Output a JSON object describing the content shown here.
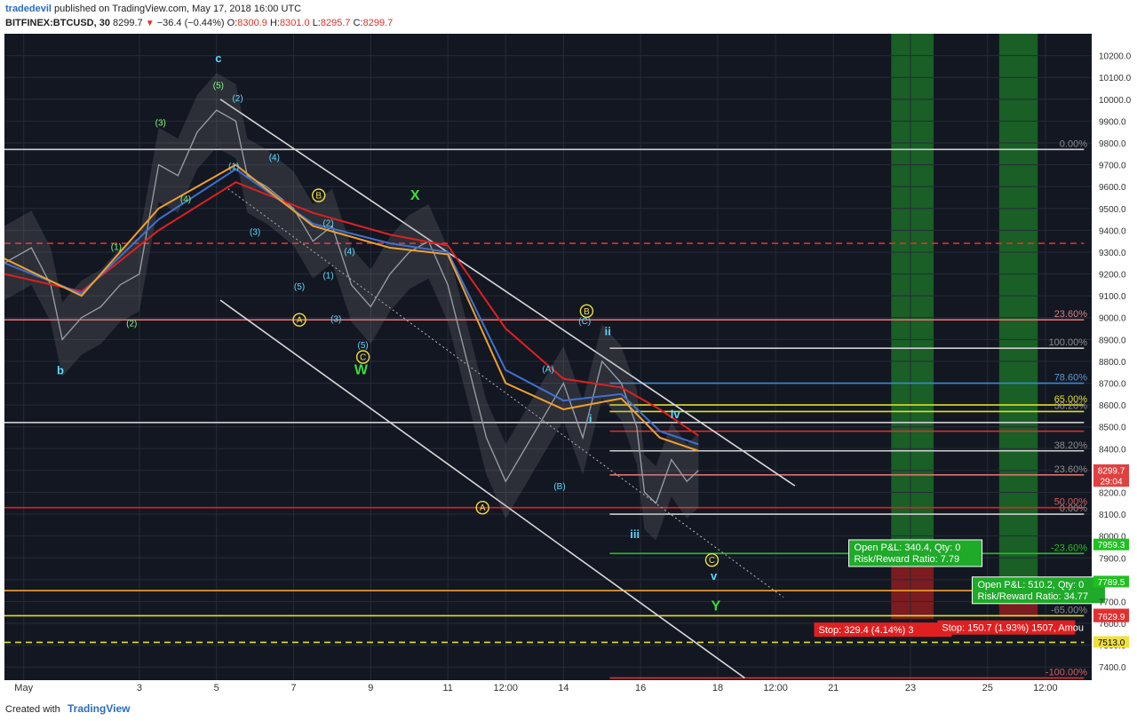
{
  "header": {
    "author": "tradedevil",
    "published": "published on TradingView.com, May 17, 2018 16:00 UTC",
    "symbol": "BITFINEX:BTCUSD, 30",
    "last": "8299.7",
    "arrow": "▼",
    "change": "−36.4 (−0.44%)",
    "open_label": "O:",
    "open": "8300.9",
    "high_label": "H:",
    "high": "8301.0",
    "low_label": "L:",
    "low": "8295.7",
    "close_label": "C:",
    "close": "8299.7"
  },
  "footer": {
    "created_with": "Created with",
    "brand": "TradingView"
  },
  "chart_data": {
    "type": "line",
    "ylim": [
      7340,
      10300
    ],
    "y_ticks": [
      7400,
      7500,
      7600,
      7700,
      7800,
      7900,
      8000,
      8100,
      8200,
      8300,
      8400,
      8500,
      8600,
      8700,
      8800,
      8900,
      9000,
      9100,
      9200,
      9300,
      9400,
      9500,
      9600,
      9700,
      9800,
      9900,
      10000,
      10100,
      10200
    ],
    "x_ticks": [
      {
        "label": "May",
        "t": 0.5
      },
      {
        "label": "3",
        "t": 3.5
      },
      {
        "label": "5",
        "t": 5.5
      },
      {
        "label": "7",
        "t": 7.5
      },
      {
        "label": "9",
        "t": 9.5
      },
      {
        "label": "11",
        "t": 11.5
      },
      {
        "label": "12:00",
        "t": 13
      },
      {
        "label": "14",
        "t": 14.5
      },
      {
        "label": "16",
        "t": 16.5
      },
      {
        "label": "18",
        "t": 18.5
      },
      {
        "label": "12:00",
        "t": 20
      },
      {
        "label": "21",
        "t": 21.5
      },
      {
        "label": "23",
        "t": 23.5
      },
      {
        "label": "25",
        "t": 25.5
      },
      {
        "label": "12:00",
        "t": 27
      }
    ],
    "price_path": [
      {
        "t": 0,
        "p": 9250
      },
      {
        "t": 0.7,
        "p": 9320
      },
      {
        "t": 1.2,
        "p": 9150
      },
      {
        "t": 1.5,
        "p": 8900
      },
      {
        "t": 2,
        "p": 9000
      },
      {
        "t": 2.5,
        "p": 9050
      },
      {
        "t": 3,
        "p": 9150
      },
      {
        "t": 3.5,
        "p": 9200
      },
      {
        "t": 4,
        "p": 9700
      },
      {
        "t": 4.5,
        "p": 9650
      },
      {
        "t": 5,
        "p": 9850
      },
      {
        "t": 5.5,
        "p": 9950
      },
      {
        "t": 6,
        "p": 9900
      },
      {
        "t": 6.3,
        "p": 9650
      },
      {
        "t": 6.8,
        "p": 9600
      },
      {
        "t": 7.5,
        "p": 9500
      },
      {
        "t": 8,
        "p": 9350
      },
      {
        "t": 8.5,
        "p": 9420
      },
      {
        "t": 9,
        "p": 9150
      },
      {
        "t": 9.5,
        "p": 9050
      },
      {
        "t": 10,
        "p": 9200
      },
      {
        "t": 10.5,
        "p": 9300
      },
      {
        "t": 11,
        "p": 9350
      },
      {
        "t": 11.5,
        "p": 9150
      },
      {
        "t": 12,
        "p": 8800
      },
      {
        "t": 12.5,
        "p": 8450
      },
      {
        "t": 13,
        "p": 8250
      },
      {
        "t": 13.5,
        "p": 8400
      },
      {
        "t": 14,
        "p": 8550
      },
      {
        "t": 14.5,
        "p": 8700
      },
      {
        "t": 15,
        "p": 8450
      },
      {
        "t": 15.5,
        "p": 8800
      },
      {
        "t": 16,
        "p": 8700
      },
      {
        "t": 16.4,
        "p": 8500
      },
      {
        "t": 16.6,
        "p": 8200
      },
      {
        "t": 16.9,
        "p": 8150
      },
      {
        "t": 17.3,
        "p": 8350
      },
      {
        "t": 17.7,
        "p": 8250
      },
      {
        "t": 18,
        "p": 8300
      }
    ],
    "moving_averages": [
      {
        "name": "red",
        "color": "#e02020",
        "points": [
          {
            "t": 0,
            "p": 9200
          },
          {
            "t": 2,
            "p": 9120
          },
          {
            "t": 4,
            "p": 9400
          },
          {
            "t": 6,
            "p": 9620
          },
          {
            "t": 8,
            "p": 9480
          },
          {
            "t": 10,
            "p": 9380
          },
          {
            "t": 11.5,
            "p": 9330
          },
          {
            "t": 13,
            "p": 8950
          },
          {
            "t": 14.5,
            "p": 8720
          },
          {
            "t": 16,
            "p": 8680
          },
          {
            "t": 17,
            "p": 8580
          },
          {
            "t": 18,
            "p": 8460
          }
        ]
      },
      {
        "name": "blue",
        "color": "#4070d0",
        "points": [
          {
            "t": 0,
            "p": 9250
          },
          {
            "t": 2,
            "p": 9110
          },
          {
            "t": 4,
            "p": 9450
          },
          {
            "t": 6,
            "p": 9680
          },
          {
            "t": 8,
            "p": 9430
          },
          {
            "t": 10,
            "p": 9340
          },
          {
            "t": 11.5,
            "p": 9300
          },
          {
            "t": 13,
            "p": 8760
          },
          {
            "t": 14.5,
            "p": 8620
          },
          {
            "t": 16,
            "p": 8650
          },
          {
            "t": 17,
            "p": 8480
          },
          {
            "t": 18,
            "p": 8420
          }
        ]
      },
      {
        "name": "orange",
        "color": "#f0a030",
        "points": [
          {
            "t": 0,
            "p": 9270
          },
          {
            "t": 2,
            "p": 9100
          },
          {
            "t": 4,
            "p": 9500
          },
          {
            "t": 6,
            "p": 9700
          },
          {
            "t": 8,
            "p": 9420
          },
          {
            "t": 10,
            "p": 9320
          },
          {
            "t": 11.5,
            "p": 9290
          },
          {
            "t": 13,
            "p": 8700
          },
          {
            "t": 14.5,
            "p": 8580
          },
          {
            "t": 16,
            "p": 8630
          },
          {
            "t": 17,
            "p": 8450
          },
          {
            "t": 18,
            "p": 8390
          }
        ]
      }
    ],
    "horizontal_levels": [
      {
        "price": 9770,
        "color": "#cfcfcf",
        "label": "0.00%",
        "label_color": "#8c8c8c",
        "t0": 0,
        "t1": 28
      },
      {
        "price": 9340,
        "color": "#e03030",
        "label": "",
        "dashed": true,
        "t0": 0,
        "t1": 28
      },
      {
        "price": 8990,
        "color": "#e07070",
        "label": "23.60%",
        "label_color": "#d08080",
        "t0": 0,
        "t1": 28
      },
      {
        "price": 8860,
        "color": "#cfcfcf",
        "label": "100.00%",
        "label_color": "#8c8c8c",
        "t0": 15.7,
        "t1": 28
      },
      {
        "price": 8700,
        "color": "#3a8ad0",
        "label": "78.60%",
        "label_color": "#5a9ad0",
        "t0": 15.7,
        "t1": 28
      },
      {
        "price": 8600,
        "color": "#e0e020",
        "label": "65.00%",
        "label_color": "#e0e020",
        "t0": 15.7,
        "t1": 28
      },
      {
        "price": 8570,
        "color": "#e0e020",
        "label": "38.20%",
        "label_color": "#8c8c8c",
        "t0": 15.7,
        "t1": 28
      },
      {
        "price": 8520,
        "color": "#cfcfcf",
        "label": "",
        "t0": 0,
        "t1": 28
      },
      {
        "price": 8480,
        "color": "#e03030",
        "label": "",
        "t0": 15.7,
        "t1": 28
      },
      {
        "price": 8390,
        "color": "#cfcfcf",
        "label": "38.20%",
        "label_color": "#8c8c8c",
        "t0": 15.7,
        "t1": 28
      },
      {
        "price": 8280,
        "color": "#e07070",
        "label": "23.60%",
        "label_color": "#8c8c8c",
        "t0": 15.7,
        "t1": 28
      },
      {
        "price": 8130,
        "color": "#e02020",
        "label": "50.00%",
        "label_color": "#d06060",
        "t0": 0,
        "t1": 28
      },
      {
        "price": 8100,
        "color": "#cfcfcf",
        "label": "0.00%",
        "label_color": "#8c8c8c",
        "t0": 15.7,
        "t1": 28
      },
      {
        "price": 7920,
        "color": "#20c020",
        "label": "-23.60%",
        "label_color": "#20c020",
        "t0": 15.7,
        "t1": 28
      },
      {
        "price": 7750,
        "color": "#f0a030",
        "label": "",
        "t0": 0,
        "t1": 28
      },
      {
        "price": 7635,
        "color": "#e0e020",
        "label": "-65.00%",
        "label_color": "#8c8c8c",
        "t0": 0,
        "t1": 28
      },
      {
        "price": 7513,
        "color": "#e0e020",
        "label": "",
        "dashed": true,
        "t0": 0,
        "t1": 28
      },
      {
        "price": 7350,
        "color": "#e03030",
        "label": "-100.00%",
        "label_color": "#d06060",
        "t0": 15.7,
        "t1": 28
      }
    ],
    "trendlines": [
      {
        "from": {
          "t": 5.6,
          "p": 10000
        },
        "to": {
          "t": 20.5,
          "p": 8230
        }
      },
      {
        "from": {
          "t": 5.6,
          "p": 9080
        },
        "to": {
          "t": 19.2,
          "p": 7350
        }
      }
    ],
    "dotted_line": {
      "from": {
        "t": 5.8,
        "p": 9590
      },
      "to": {
        "t": 20.2,
        "p": 7720
      }
    },
    "wave_labels": [
      {
        "text": "c",
        "t": 5.55,
        "p": 10170,
        "color": "#5fd8ff",
        "size": 13,
        "bold": true
      },
      {
        "text": "(5)",
        "t": 5.55,
        "p": 10050,
        "color": "#7dff7d",
        "size": 10
      },
      {
        "text": "(2)",
        "t": 6.05,
        "p": 9990,
        "color": "#5fd8ff",
        "size": 10
      },
      {
        "text": "(3)",
        "t": 4.05,
        "p": 9880,
        "color": "#7dff7d",
        "size": 10
      },
      {
        "text": "(1)",
        "t": 5.95,
        "p": 9680,
        "color": "#5fd8ff",
        "size": 10
      },
      {
        "text": "(4)",
        "t": 7.0,
        "p": 9720,
        "color": "#5fd8ff",
        "size": 10
      },
      {
        "text": "(4)",
        "t": 4.7,
        "p": 9530,
        "color": "#7dff7d",
        "size": 10
      },
      {
        "text": "(3)",
        "t": 6.5,
        "p": 9380,
        "color": "#5fd8ff",
        "size": 10
      },
      {
        "text": "(1)",
        "t": 2.9,
        "p": 9310,
        "color": "#7dff7d",
        "size": 10
      },
      {
        "text": "(2)",
        "t": 3.3,
        "p": 8960,
        "color": "#7dff7d",
        "size": 10
      },
      {
        "text": "(5)",
        "t": 7.65,
        "p": 9130,
        "color": "#5fd8ff",
        "size": 10
      },
      {
        "text": "(2)",
        "t": 8.4,
        "p": 9420,
        "color": "#5fd8ff",
        "size": 10
      },
      {
        "text": "(4)",
        "t": 8.95,
        "p": 9290,
        "color": "#5fd8ff",
        "size": 10
      },
      {
        "text": "(1)",
        "t": 8.4,
        "p": 9180,
        "color": "#5fd8ff",
        "size": 10
      },
      {
        "text": "(3)",
        "t": 8.6,
        "p": 8980,
        "color": "#5fd8ff",
        "size": 10
      },
      {
        "text": "(5)",
        "t": 9.3,
        "p": 8860,
        "color": "#5fd8ff",
        "size": 10
      },
      {
        "text": "b",
        "t": 1.45,
        "p": 8740,
        "color": "#5fd8ff",
        "size": 13,
        "bold": true
      },
      {
        "text": "W",
        "t": 9.25,
        "p": 8740,
        "color": "#3bdc3b",
        "size": 16,
        "bold": true
      },
      {
        "text": "X",
        "t": 10.65,
        "p": 9540,
        "color": "#3bdc3b",
        "size": 16,
        "bold": true
      },
      {
        "text": "(C)",
        "t": 15.05,
        "p": 8970,
        "color": "#5fd8ff",
        "size": 10
      },
      {
        "text": "(A)",
        "t": 14.1,
        "p": 8750,
        "color": "#5fd8ff",
        "size": 10
      },
      {
        "text": "(B)",
        "t": 14.4,
        "p": 8215,
        "color": "#5fd8ff",
        "size": 10
      },
      {
        "text": "ii",
        "t": 15.65,
        "p": 8920,
        "color": "#5fd8ff",
        "size": 13,
        "bold": true
      },
      {
        "text": "i",
        "t": 15.2,
        "p": 8520,
        "color": "#5fd8ff",
        "size": 13,
        "bold": true
      },
      {
        "text": "iv",
        "t": 17.4,
        "p": 8540,
        "color": "#5fd8ff",
        "size": 13,
        "bold": true
      },
      {
        "text": "iii",
        "t": 16.35,
        "p": 7990,
        "color": "#5fd8ff",
        "size": 13,
        "bold": true
      },
      {
        "text": "v",
        "t": 18.4,
        "p": 7800,
        "color": "#5fd8ff",
        "size": 13,
        "bold": true
      },
      {
        "text": "Y",
        "t": 18.45,
        "p": 7660,
        "color": "#3bdc3b",
        "size": 16,
        "bold": true
      }
    ],
    "circled_labels": [
      {
        "text": "B",
        "t": 8.15,
        "p": 9560,
        "color": "#f0e040"
      },
      {
        "text": "A",
        "t": 7.65,
        "p": 8990,
        "color": "#f0e040"
      },
      {
        "text": "C",
        "t": 9.3,
        "p": 8820,
        "color": "#f0e040"
      },
      {
        "text": "B",
        "t": 15.1,
        "p": 9030,
        "color": "#f0e040"
      },
      {
        "text": "A",
        "t": 12.4,
        "p": 8130,
        "color": "#f0e040"
      },
      {
        "text": "C",
        "t": 18.35,
        "p": 7890,
        "color": "#f0e040"
      }
    ],
    "price_badges": [
      {
        "price": 8299.7,
        "text": "8299.7",
        "bg": "#e04040",
        "fg": "#ffffff"
      },
      {
        "price": 8250,
        "text": "29:04",
        "bg": "#e04040",
        "fg": "#ffffff"
      },
      {
        "price": 7959.3,
        "text": "7959.3",
        "bg": "#20c020",
        "fg": "#ffffff"
      },
      {
        "price": 7789.5,
        "text": "7789.5",
        "bg": "#20c020",
        "fg": "#ffffff"
      },
      {
        "price": 7638.8,
        "text": "7638.8",
        "bg": "#e03030",
        "fg": "#ffffff"
      },
      {
        "price": 7629.9,
        "text": "7629.9",
        "bg": "#e03030",
        "fg": "#ffffff"
      },
      {
        "price": 7513.0,
        "text": "7513.0",
        "bg": "#f0e040",
        "fg": "#000000"
      }
    ],
    "positions": [
      {
        "t0": 23.0,
        "t1": 24.1,
        "entry": 7950,
        "target": 10300,
        "stop": 7620,
        "pnl_line1": "Open P&L: 340.4, Qty: 0",
        "pnl_line2": "Risk/Reward Ratio: 7.79",
        "stop_text": "Stop: 329.4 (4.14%) 3",
        "box_t": 21.9,
        "stop_t": 21.0
      },
      {
        "t0": 25.8,
        "t1": 26.8,
        "entry": 7780,
        "target": 10300,
        "stop": 7630,
        "pnl_line1": "Open P&L: 510.2, Qty: 0",
        "pnl_line2": "Risk/Reward Ratio: 34.77",
        "stop_text": "Stop: 150.7 (1.93%) 1507, Amou",
        "box_t": 25.1,
        "stop_t": 24.2
      }
    ]
  }
}
